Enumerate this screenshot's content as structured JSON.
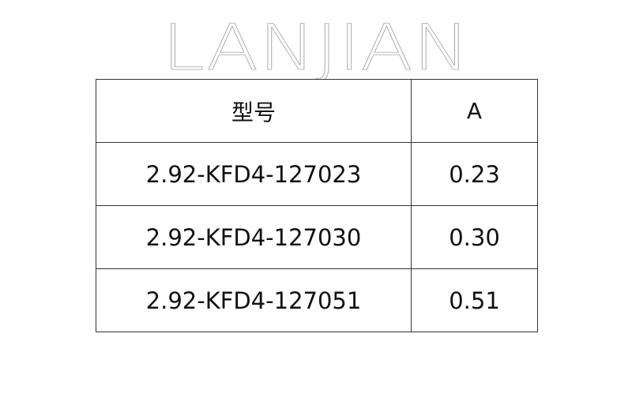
{
  "table": {
    "headers": [
      "型号",
      "A"
    ],
    "rows": [
      [
        "2.92-KFD4-127023",
        "0.23"
      ],
      [
        "2.92-KFD4-127030",
        "0.30"
      ],
      [
        "2.92-KFD4-127051",
        "0.51"
      ]
    ]
  },
  "watermark": "LANJIAN"
}
